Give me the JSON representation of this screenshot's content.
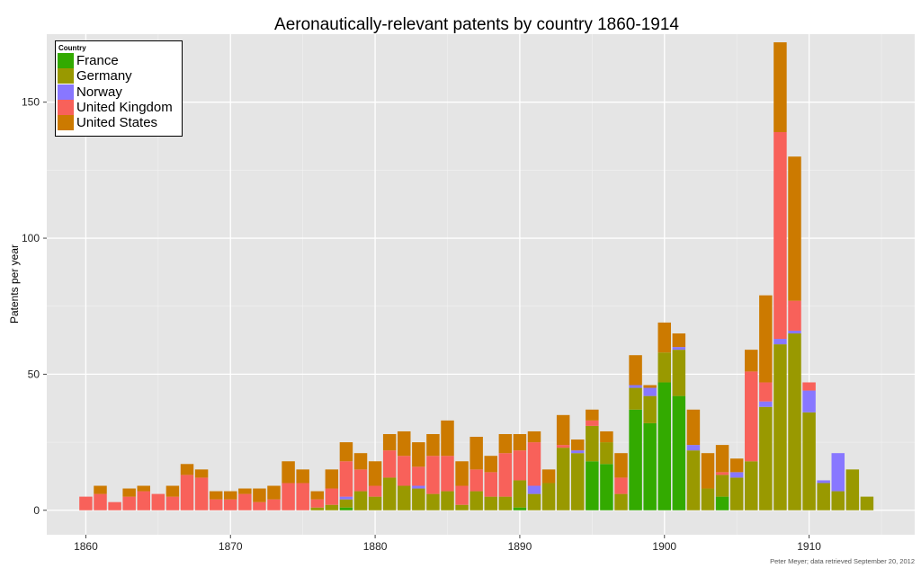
{
  "chart_data": {
    "type": "bar",
    "stacked": true,
    "title": "Aeronautically-relevant patents by country 1860-1914",
    "xlabel": "",
    "ylabel": "Patents per year",
    "xlim": [
      1857.3,
      1917.3
    ],
    "ylim": [
      -9,
      175
    ],
    "x_ticks": [
      1860,
      1870,
      1880,
      1890,
      1900,
      1910
    ],
    "y_ticks": [
      0,
      50,
      100,
      150
    ],
    "grid": true,
    "legend_title": "Country",
    "legend_position": "top-left",
    "years": [
      1860,
      1861,
      1862,
      1863,
      1864,
      1865,
      1866,
      1867,
      1868,
      1869,
      1870,
      1871,
      1872,
      1873,
      1874,
      1875,
      1876,
      1877,
      1878,
      1879,
      1880,
      1881,
      1882,
      1883,
      1884,
      1885,
      1886,
      1887,
      1888,
      1889,
      1890,
      1891,
      1892,
      1893,
      1894,
      1895,
      1896,
      1897,
      1898,
      1899,
      1900,
      1901,
      1902,
      1903,
      1904,
      1905,
      1906,
      1907,
      1908,
      1909,
      1910,
      1911,
      1912,
      1913,
      1914
    ],
    "series": [
      {
        "name": "France",
        "color": "#33aa00",
        "values": [
          0,
          0,
          0,
          0,
          0,
          0,
          0,
          0,
          0,
          0,
          0,
          0,
          0,
          0,
          0,
          0,
          0,
          0,
          1,
          0,
          0,
          0,
          0,
          0,
          0,
          0,
          0,
          0,
          0,
          0,
          1,
          0,
          0,
          0,
          0,
          18,
          17,
          0,
          37,
          32,
          47,
          42,
          0,
          0,
          5,
          0,
          0,
          0,
          0,
          0,
          0,
          0,
          0,
          0,
          0
        ]
      },
      {
        "name": "Germany",
        "color": "#999900",
        "values": [
          0,
          0,
          0,
          0,
          0,
          0,
          0,
          0,
          0,
          0,
          0,
          0,
          0,
          0,
          0,
          0,
          1,
          2,
          3,
          7,
          5,
          12,
          9,
          8,
          6,
          7,
          2,
          7,
          5,
          5,
          10,
          6,
          10,
          23,
          21,
          13,
          8,
          6,
          8,
          10,
          11,
          17,
          22,
          8,
          8,
          12,
          18,
          38,
          61,
          65,
          36,
          10,
          7,
          15,
          5
        ]
      },
      {
        "name": "Norway",
        "color": "#8877ff",
        "values": [
          0,
          0,
          0,
          0,
          0,
          0,
          0,
          0,
          0,
          0,
          0,
          0,
          0,
          0,
          0,
          0,
          0,
          0,
          1,
          0,
          0,
          0,
          0,
          1,
          0,
          0,
          0,
          0,
          0,
          0,
          0,
          3,
          0,
          0,
          1,
          0,
          0,
          0,
          1,
          3,
          0,
          1,
          2,
          0,
          0,
          2,
          0,
          2,
          2,
          1,
          8,
          1,
          14,
          0,
          0
        ]
      },
      {
        "name": "United Kingdom",
        "color": "#f8615a",
        "values": [
          5,
          6,
          3,
          5,
          7,
          6,
          5,
          13,
          12,
          4,
          4,
          6,
          3,
          4,
          10,
          10,
          3,
          6,
          13,
          8,
          4,
          10,
          11,
          7,
          14,
          13,
          7,
          8,
          9,
          16,
          11,
          16,
          0,
          1,
          0,
          2,
          0,
          6,
          0,
          0,
          0,
          0,
          0,
          0,
          1,
          0,
          33,
          7,
          76,
          11,
          3,
          0,
          0,
          0,
          0
        ]
      },
      {
        "name": "United States",
        "color": "#cc7a00",
        "values": [
          0,
          3,
          0,
          3,
          2,
          0,
          4,
          4,
          3,
          3,
          3,
          2,
          5,
          5,
          8,
          5,
          3,
          7,
          7,
          6,
          9,
          6,
          9,
          9,
          8,
          13,
          9,
          12,
          6,
          7,
          6,
          4,
          5,
          11,
          4,
          4,
          4,
          9,
          11,
          1,
          11,
          5,
          13,
          13,
          10,
          5,
          8,
          32,
          33,
          53,
          0,
          0,
          0,
          0,
          0
        ]
      }
    ]
  },
  "credit": "Peter Meyer; data retrieved September 20, 2012"
}
